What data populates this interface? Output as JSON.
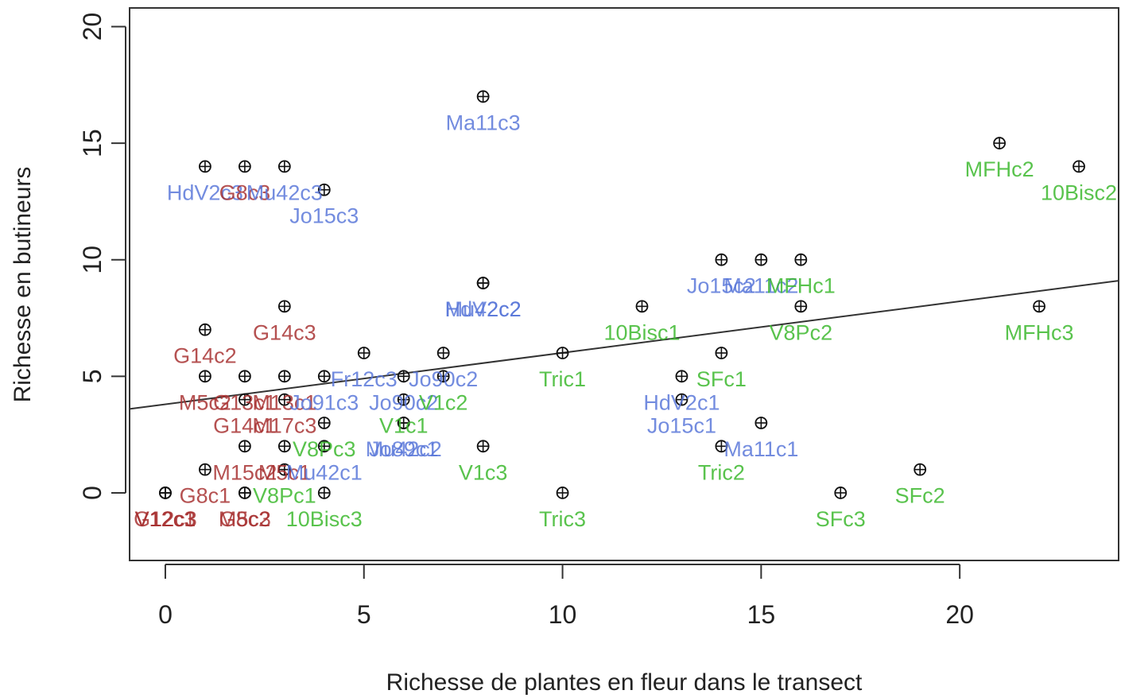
{
  "chart_data": {
    "type": "scatter",
    "xlabel": "Richesse de plantes en fleur dans le transect",
    "ylabel": "Richesse en butineurs",
    "xlim": [
      -0.9,
      24
    ],
    "ylim": [
      -2.9,
      20.8
    ],
    "xticks": [
      0,
      5,
      10,
      15,
      20
    ],
    "yticks": [
      0,
      5,
      10,
      15,
      20
    ],
    "grid": false,
    "legend": "none",
    "trend_line": {
      "x": [
        -0.9,
        24
      ],
      "y": [
        3.6,
        9.1
      ]
    },
    "group_colors": {
      "red": "#a83232",
      "blue": "#5b78d9",
      "green": "#3cb82e",
      "marker": "#111111",
      "line": "#333333"
    },
    "points": [
      {
        "x": 0,
        "y": 0,
        "label": "V12c1",
        "group": "red"
      },
      {
        "x": 0,
        "y": 0,
        "label": "V12c3",
        "group": "red"
      },
      {
        "x": 0,
        "y": 0,
        "label": "G12c3",
        "group": "red"
      },
      {
        "x": 1,
        "y": 14,
        "label": "HdV2c3",
        "group": "blue"
      },
      {
        "x": 1,
        "y": 7,
        "label": "G14c2",
        "group": "red"
      },
      {
        "x": 1,
        "y": 5,
        "label": "M5c2",
        "group": "red"
      },
      {
        "x": 1,
        "y": 1,
        "label": "G8c1",
        "group": "red"
      },
      {
        "x": 2,
        "y": 14,
        "label": "G8c3",
        "group": "red"
      },
      {
        "x": 2,
        "y": 5,
        "label": "G13c1",
        "group": "red"
      },
      {
        "x": 2,
        "y": 4,
        "label": "G14c1",
        "group": "red"
      },
      {
        "x": 2,
        "y": 2,
        "label": "M15c2",
        "group": "red"
      },
      {
        "x": 2,
        "y": 0,
        "label": "M5c3",
        "group": "red"
      },
      {
        "x": 2,
        "y": 0,
        "label": "G8c2",
        "group": "red"
      },
      {
        "x": 3,
        "y": 14,
        "label": "Mu42c3",
        "group": "blue"
      },
      {
        "x": 3,
        "y": 8,
        "label": "G14c3",
        "group": "red"
      },
      {
        "x": 3,
        "y": 5,
        "label": "M13c1",
        "group": "red"
      },
      {
        "x": 3,
        "y": 4,
        "label": "M17c3",
        "group": "red"
      },
      {
        "x": 3,
        "y": 2,
        "label": "M5c1",
        "group": "red"
      },
      {
        "x": 3,
        "y": 1,
        "label": "V8Pc1",
        "group": "green"
      },
      {
        "x": 4,
        "y": 13,
        "label": "Jo15c3",
        "group": "blue"
      },
      {
        "x": 4,
        "y": 5,
        "label": "Jo91c3",
        "group": "blue"
      },
      {
        "x": 4,
        "y": 3,
        "label": "V8Pc3",
        "group": "green"
      },
      {
        "x": 4,
        "y": 2,
        "label": "Mu42c1",
        "group": "blue"
      },
      {
        "x": 4,
        "y": 0,
        "label": "10Bisc3",
        "group": "green"
      },
      {
        "x": 5,
        "y": 6,
        "label": "Fr12c3",
        "group": "blue"
      },
      {
        "x": 6,
        "y": 5,
        "label": "Jo90c2",
        "group": "blue"
      },
      {
        "x": 6,
        "y": 4,
        "label": "V1c1",
        "group": "green"
      },
      {
        "x": 6,
        "y": 3,
        "label": "Mu42c2",
        "group": "blue"
      },
      {
        "x": 6,
        "y": 3,
        "label": "Jo89c1",
        "group": "blue"
      },
      {
        "x": 7,
        "y": 6,
        "label": "Jo90c2",
        "group": "blue"
      },
      {
        "x": 7,
        "y": 5,
        "label": "V1c2",
        "group": "green"
      },
      {
        "x": 8,
        "y": 17,
        "label": "Ma11c3",
        "group": "blue"
      },
      {
        "x": 8,
        "y": 9,
        "label": "HdV2c2",
        "group": "blue"
      },
      {
        "x": 8,
        "y": 9,
        "label": "Mu42c2",
        "group": "blue"
      },
      {
        "x": 8,
        "y": 2,
        "label": "V1c3",
        "group": "green"
      },
      {
        "x": 10,
        "y": 6,
        "label": "Tric1",
        "group": "green"
      },
      {
        "x": 10,
        "y": 0,
        "label": "Tric3",
        "group": "green"
      },
      {
        "x": 12,
        "y": 8,
        "label": "10Bisc1",
        "group": "green"
      },
      {
        "x": 13,
        "y": 5,
        "label": "HdV2c1",
        "group": "blue"
      },
      {
        "x": 13,
        "y": 4,
        "label": "Jo15c1",
        "group": "blue"
      },
      {
        "x": 14,
        "y": 10,
        "label": "Jo15c2",
        "group": "blue"
      },
      {
        "x": 14,
        "y": 6,
        "label": "SFc1",
        "group": "green"
      },
      {
        "x": 14,
        "y": 2,
        "label": "Tric2",
        "group": "green"
      },
      {
        "x": 15,
        "y": 10,
        "label": "Ma11c2",
        "group": "blue"
      },
      {
        "x": 15,
        "y": 3,
        "label": "Ma11c1",
        "group": "blue"
      },
      {
        "x": 16,
        "y": 10,
        "label": "MFHc1",
        "group": "green"
      },
      {
        "x": 16,
        "y": 8,
        "label": "V8Pc2",
        "group": "green"
      },
      {
        "x": 17,
        "y": 0,
        "label": "SFc3",
        "group": "green"
      },
      {
        "x": 19,
        "y": 1,
        "label": "SFc2",
        "group": "green"
      },
      {
        "x": 21,
        "y": 15,
        "label": "MFHc2",
        "group": "green"
      },
      {
        "x": 22,
        "y": 8,
        "label": "MFHc3",
        "group": "green"
      },
      {
        "x": 23,
        "y": 14,
        "label": "10Bisc2",
        "group": "green"
      }
    ]
  }
}
